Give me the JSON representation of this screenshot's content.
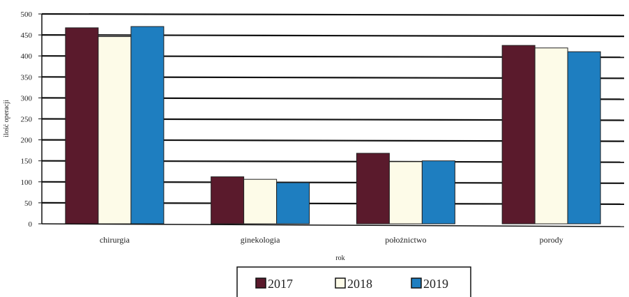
{
  "chart_data": {
    "type": "bar",
    "title": "",
    "xlabel": "rok",
    "ylabel": "ilość operacji",
    "ylim": [
      0,
      500
    ],
    "yticks": [
      0,
      50,
      100,
      150,
      200,
      250,
      300,
      350,
      400,
      450,
      500
    ],
    "categories": [
      "chirurgia",
      "ginekologia",
      "położnictwo",
      "porody"
    ],
    "series": [
      {
        "name": "2017",
        "color": "#5a1a2c",
        "values": [
          467,
          112,
          168,
          425
        ]
      },
      {
        "name": "2018",
        "color": "#fdfbe8",
        "values": [
          446,
          106,
          148,
          419
        ]
      },
      {
        "name": "2019",
        "color": "#1e7ec0",
        "values": [
          470,
          98,
          150,
          410
        ]
      }
    ],
    "grid": true,
    "legend_position": "bottom"
  }
}
